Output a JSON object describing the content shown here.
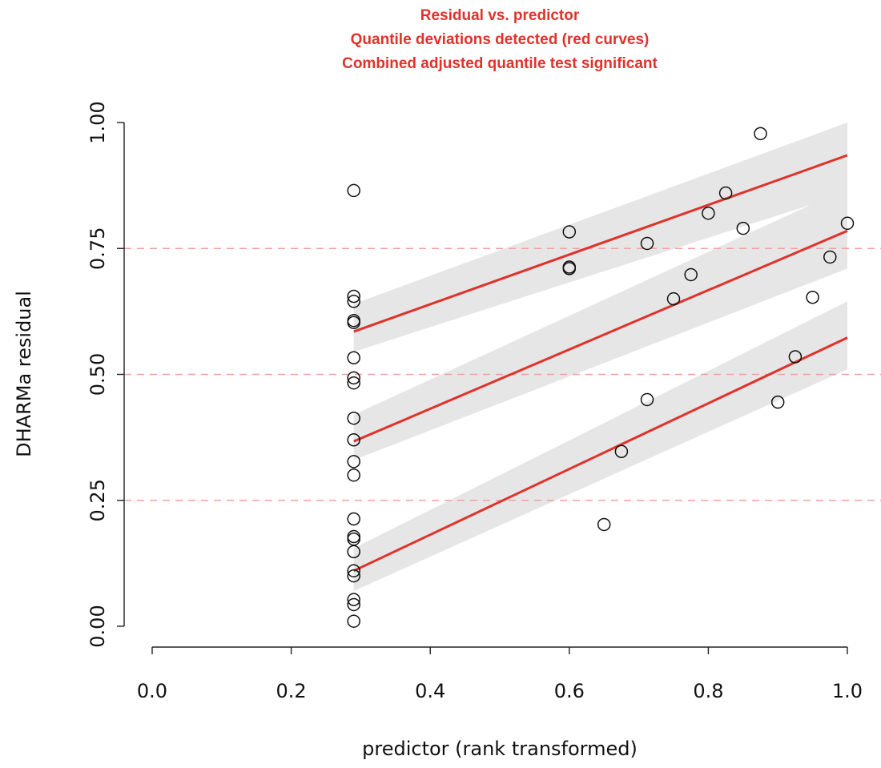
{
  "chart_data": {
    "type": "scatter",
    "title_lines": [
      "Residual vs. predictor",
      "Quantile deviations detected (red curves)",
      "Combined adjusted quantile test significant"
    ],
    "title_color": "#e0322b",
    "xlabel": "predictor (rank transformed)",
    "ylabel": "DHARMa residual",
    "xlim": [
      0.0,
      1.0
    ],
    "ylim": [
      0.0,
      1.0
    ],
    "x_ticks": [
      "0.0",
      "0.2",
      "0.4",
      "0.6",
      "0.8",
      "1.0"
    ],
    "y_ticks": [
      "0.00",
      "0.25",
      "0.50",
      "0.75",
      "1.00"
    ],
    "reference_lines": [
      0.25,
      0.5,
      0.75
    ],
    "reference_color": "#f2a0a0",
    "quantile_fits": [
      {
        "quantile": 0.25,
        "x": [
          0.29,
          1.0
        ],
        "y": [
          0.11,
          0.573
        ],
        "band_lower": [
          0.07,
          0.51
        ],
        "band_upper": [
          0.155,
          0.645
        ]
      },
      {
        "quantile": 0.5,
        "x": [
          0.29,
          1.0
        ],
        "y": [
          0.367,
          0.785
        ],
        "band_lower": [
          0.33,
          0.71
        ],
        "band_upper": [
          0.42,
          0.87
        ]
      },
      {
        "quantile": 0.75,
        "x": [
          0.29,
          1.0
        ],
        "y": [
          0.585,
          0.935
        ],
        "band_lower": [
          0.545,
          0.86
        ],
        "band_upper": [
          0.64,
          1.0
        ]
      }
    ],
    "fit_color": "#e0322b",
    "band_color": "#e6e6e6",
    "points": [
      {
        "x": 0.29,
        "y": 0.865
      },
      {
        "x": 0.29,
        "y": 0.655
      },
      {
        "x": 0.29,
        "y": 0.645
      },
      {
        "x": 0.29,
        "y": 0.607
      },
      {
        "x": 0.29,
        "y": 0.603
      },
      {
        "x": 0.29,
        "y": 0.533
      },
      {
        "x": 0.29,
        "y": 0.493
      },
      {
        "x": 0.29,
        "y": 0.483
      },
      {
        "x": 0.29,
        "y": 0.413
      },
      {
        "x": 0.29,
        "y": 0.37
      },
      {
        "x": 0.29,
        "y": 0.327
      },
      {
        "x": 0.29,
        "y": 0.3
      },
      {
        "x": 0.29,
        "y": 0.213
      },
      {
        "x": 0.29,
        "y": 0.178
      },
      {
        "x": 0.29,
        "y": 0.173
      },
      {
        "x": 0.29,
        "y": 0.148
      },
      {
        "x": 0.29,
        "y": 0.11
      },
      {
        "x": 0.29,
        "y": 0.1
      },
      {
        "x": 0.29,
        "y": 0.053
      },
      {
        "x": 0.29,
        "y": 0.043
      },
      {
        "x": 0.29,
        "y": 0.01
      },
      {
        "x": 0.6,
        "y": 0.783
      },
      {
        "x": 0.6,
        "y": 0.713
      },
      {
        "x": 0.6,
        "y": 0.71
      },
      {
        "x": 0.65,
        "y": 0.202
      },
      {
        "x": 0.675,
        "y": 0.347
      },
      {
        "x": 0.712,
        "y": 0.76
      },
      {
        "x": 0.712,
        "y": 0.45
      },
      {
        "x": 0.75,
        "y": 0.65
      },
      {
        "x": 0.775,
        "y": 0.698
      },
      {
        "x": 0.8,
        "y": 0.82
      },
      {
        "x": 0.825,
        "y": 0.86
      },
      {
        "x": 0.85,
        "y": 0.79
      },
      {
        "x": 0.875,
        "y": 0.978
      },
      {
        "x": 0.9,
        "y": 0.445
      },
      {
        "x": 0.925,
        "y": 0.535
      },
      {
        "x": 0.95,
        "y": 0.653
      },
      {
        "x": 0.975,
        "y": 0.733
      },
      {
        "x": 1.0,
        "y": 0.8
      }
    ]
  }
}
